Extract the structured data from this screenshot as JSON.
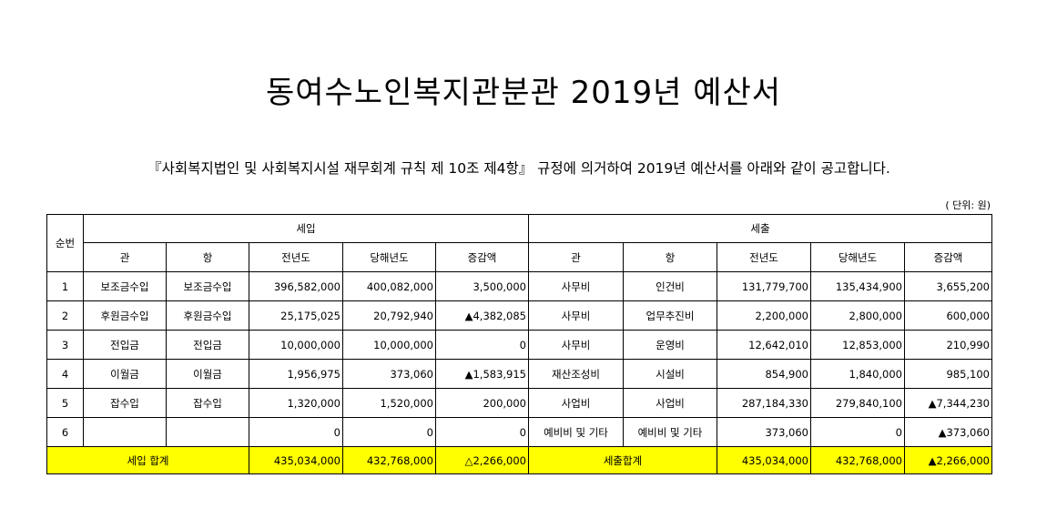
{
  "title": "동여수노인복지관분관 2019년 예산서",
  "subtitle": "『사회복지법인 및 사회복지시설 재무회계 규칙 제 10조 제4항』 규정에 의거하여 2019년 예산서를 아래와 같이 공고합니다.",
  "unit": "( 단위: 원)",
  "table": {
    "header": {
      "no": "순번",
      "income": "세입",
      "expense": "세출",
      "columns": [
        "관",
        "항",
        "전년도",
        "당해년도",
        "증감액",
        "관",
        "항",
        "전년도",
        "당해년도",
        "증감액"
      ]
    },
    "rows": [
      {
        "no": "1",
        "cells": [
          "보조금수입",
          "보조금수입",
          "396,582,000",
          "400,082,000",
          "3,500,000",
          "사무비",
          "인건비",
          "131,779,700",
          "135,434,900",
          "3,655,200"
        ]
      },
      {
        "no": "2",
        "cells": [
          "후원금수입",
          "후원금수입",
          "25,175,025",
          "20,792,940",
          "▲4,382,085",
          "사무비",
          "업무추진비",
          "2,200,000",
          "2,800,000",
          "600,000"
        ]
      },
      {
        "no": "3",
        "cells": [
          "전입금",
          "전입금",
          "10,000,000",
          "10,000,000",
          "0",
          "사무비",
          "운영비",
          "12,642,010",
          "12,853,000",
          "210,990"
        ]
      },
      {
        "no": "4",
        "cells": [
          "이월금",
          "이월금",
          "1,956,975",
          "373,060",
          "▲1,583,915",
          "재산조성비",
          "시설비",
          "854,900",
          "1,840,000",
          "985,100"
        ]
      },
      {
        "no": "5",
        "cells": [
          "잡수입",
          "잡수입",
          "1,320,000",
          "1,520,000",
          "200,000",
          "사업비",
          "사업비",
          "287,184,330",
          "279,840,100",
          "▲7,344,230"
        ]
      },
      {
        "no": "6",
        "cells": [
          "",
          "",
          "0",
          "0",
          "0",
          "예비비 및 기타",
          "예비비 및 기타",
          "373,060",
          "0",
          "▲373,060"
        ]
      }
    ],
    "total": {
      "income_label": "세입 합계",
      "income_prev": "435,034,000",
      "income_curr": "432,768,000",
      "income_diff": "△2,266,000",
      "expense_label": "세출합계",
      "expense_prev": "435,034,000",
      "expense_curr": "432,768,000",
      "expense_diff": "▲2,266,000"
    }
  }
}
